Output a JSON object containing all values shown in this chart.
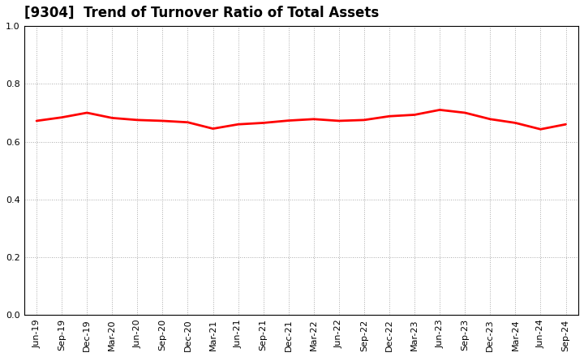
{
  "title": "[9304]  Trend of Turnover Ratio of Total Assets",
  "line_color": "#FF0000",
  "line_width": 2.0,
  "background_color": "#FFFFFF",
  "grid_color": "#AAAAAA",
  "ylim": [
    0.0,
    1.0
  ],
  "yticks": [
    0.0,
    0.2,
    0.4,
    0.6,
    0.8,
    1.0
  ],
  "title_fontsize": 12,
  "tick_fontsize": 8,
  "x_labels": [
    "Jun-19",
    "Sep-19",
    "Dec-19",
    "Mar-20",
    "Jun-20",
    "Sep-20",
    "Dec-20",
    "Mar-21",
    "Jun-21",
    "Sep-21",
    "Dec-21",
    "Mar-22",
    "Jun-22",
    "Sep-22",
    "Dec-22",
    "Mar-23",
    "Jun-23",
    "Sep-23",
    "Dec-23",
    "Mar-24",
    "Jun-24",
    "Sep-24"
  ],
  "values": [
    0.672,
    0.684,
    0.7,
    0.682,
    0.675,
    0.672,
    0.667,
    0.645,
    0.66,
    0.665,
    0.673,
    0.678,
    0.672,
    0.675,
    0.688,
    0.693,
    0.71,
    0.7,
    0.678,
    0.665,
    0.643,
    0.66
  ]
}
